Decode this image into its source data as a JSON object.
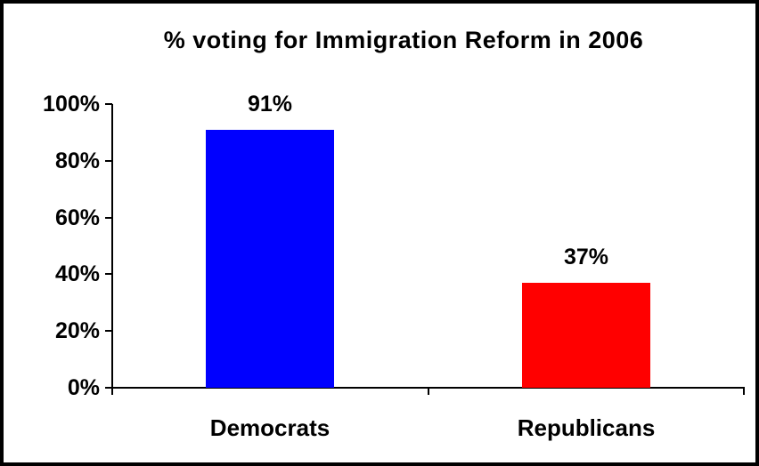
{
  "chart_data": {
    "type": "bar",
    "title": "% voting for Immigration Reform in 2006",
    "categories": [
      "Democrats",
      "Republicans"
    ],
    "values": [
      91,
      37
    ],
    "value_labels": [
      "91%",
      "37%"
    ],
    "bar_colors": [
      "#0000ff",
      "#ff0000"
    ],
    "xlabel": "",
    "ylabel": "",
    "ylim": [
      0,
      100
    ],
    "yticks": [
      0,
      20,
      40,
      60,
      80,
      100
    ],
    "ytick_labels": [
      "0%",
      "20%",
      "40%",
      "60%",
      "80%",
      "100%"
    ],
    "grid": false,
    "legend": false
  },
  "frame": {
    "border_color": "#000000",
    "background": "#ffffff",
    "axis_color": "#000000",
    "text_color": "#000000"
  }
}
